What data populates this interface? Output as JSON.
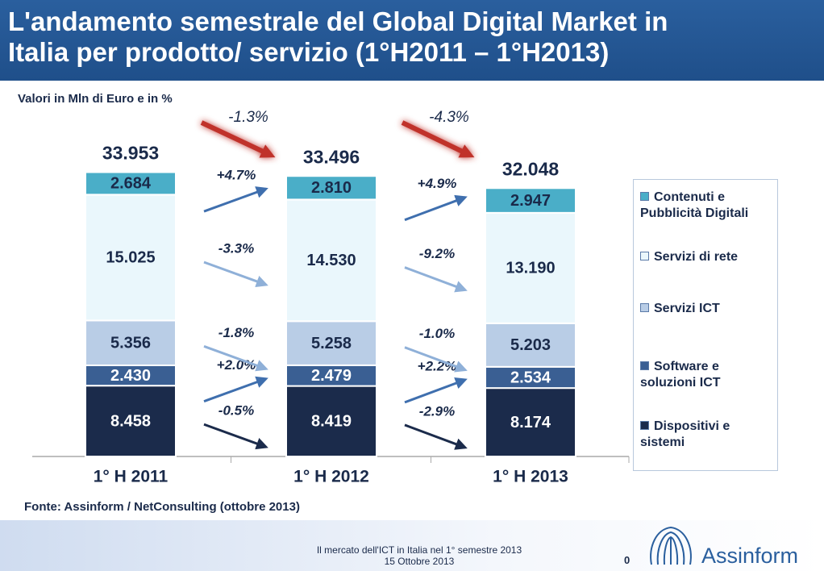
{
  "header": {
    "title": [
      "L'andamento semestrale del Global Digital Market in",
      "Italia per prodotto/ servizio (1°H2011 – 1°H2013)"
    ]
  },
  "chart_data": {
    "type": "bar",
    "stacked": true,
    "subtitle": "Valori in Mln di Euro e in %",
    "categories": [
      "1° H 2011",
      "1° H 2012",
      "1° H 2013"
    ],
    "series": [
      {
        "name": "Dispositivi e sistemi",
        "color": "#1b2b4b",
        "values": [
          8458,
          8419,
          8174
        ],
        "value_labels": [
          "8.458",
          "8.419",
          "8.174"
        ],
        "changes": [
          -0.5,
          -2.9
        ],
        "change_labels": [
          "-0.5%",
          "-2.9%"
        ]
      },
      {
        "name": "Software e soluzioni ICT",
        "color": "#3a5f93",
        "values": [
          2430,
          2479,
          2534
        ],
        "value_labels": [
          "2.430",
          "2.479",
          "2.534"
        ],
        "changes": [
          2.0,
          2.2
        ],
        "change_labels": [
          "+2.0%",
          "+2.2%"
        ]
      },
      {
        "name": "Servizi ICT",
        "color": "#b9cde6",
        "values": [
          5356,
          5258,
          5203
        ],
        "value_labels": [
          "5.356",
          "5.258",
          "5.203"
        ],
        "changes": [
          -1.8,
          -1.0
        ],
        "change_labels": [
          "-1.8%",
          "-1.0%"
        ]
      },
      {
        "name": "Servizi di rete",
        "color": "#eaf7fc",
        "values": [
          15025,
          14530,
          13190
        ],
        "value_labels": [
          "15.025",
          "14.530",
          "13.190"
        ],
        "changes": [
          -3.3,
          -9.2
        ],
        "change_labels": [
          "-3.3%",
          "-9.2%"
        ]
      },
      {
        "name": "Contenuti e Pubblicità Digitali",
        "color": "#4aaec8",
        "values": [
          2684,
          2810,
          2947
        ],
        "value_labels": [
          "2.684",
          "2.810",
          "2.947"
        ],
        "changes": [
          4.7,
          4.9
        ],
        "change_labels": [
          "+4.7%",
          "+4.9%"
        ]
      }
    ],
    "totals": {
      "values": [
        33953,
        33496,
        32048
      ],
      "value_labels": [
        "33.953",
        "33.496",
        "32.048"
      ],
      "changes": [
        -1.3,
        -4.3
      ],
      "change_labels": [
        "-1.3%",
        "-4.3%"
      ]
    },
    "source": "Fonte: Assinform / NetConsulting (ottobre 2013)"
  },
  "footer": {
    "lines": [
      "Il mercato dell'ICT in Italia  nel 1° semestre 2013",
      "15  Ottobre 2013"
    ],
    "page": "0",
    "logo": "Assinform"
  }
}
